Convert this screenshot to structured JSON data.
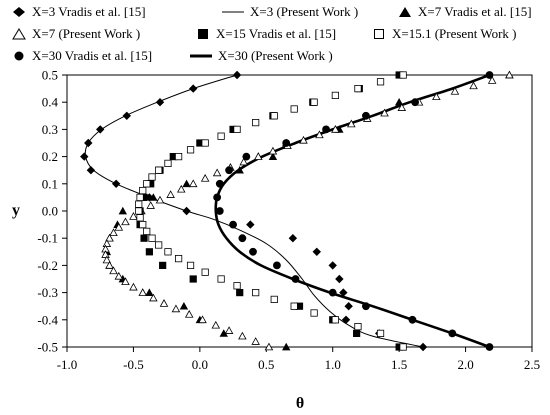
{
  "chart_data": {
    "type": "scatter",
    "title": "",
    "xlabel": "θ",
    "ylabel": "y",
    "xlim": [
      -1.0,
      2.5
    ],
    "ylim": [
      -0.5,
      0.5
    ],
    "xticks": [
      "-1.0",
      "-0.5",
      "0.0",
      "0.5",
      "1.0",
      "1.5",
      "2.0",
      "2.5"
    ],
    "yticks": [
      "-0.5",
      "-0.4",
      "-0.3",
      "-0.2",
      "-0.1",
      "0.0",
      "0.1",
      "0.2",
      "0.3",
      "0.4",
      "0.5"
    ],
    "grid": false,
    "legend_position": "top",
    "series": [
      {
        "name": "X=3 Vradis et al. [15]",
        "kind": "markers",
        "marker": "diamond",
        "points": [
          [
            0.28,
            0.5
          ],
          [
            -0.05,
            0.45
          ],
          [
            -0.3,
            0.4
          ],
          [
            -0.55,
            0.35
          ],
          [
            -0.75,
            0.3
          ],
          [
            -0.84,
            0.25
          ],
          [
            -0.87,
            0.2
          ],
          [
            -0.82,
            0.15
          ],
          [
            -0.63,
            0.1
          ],
          [
            -0.38,
            0.05
          ],
          [
            -0.1,
            0.0
          ],
          [
            0.38,
            -0.05
          ],
          [
            0.7,
            -0.1
          ],
          [
            0.88,
            -0.15
          ],
          [
            1.0,
            -0.2
          ],
          [
            1.05,
            -0.25
          ],
          [
            1.08,
            -0.3
          ],
          [
            1.12,
            -0.35
          ],
          [
            1.1,
            -0.4
          ],
          [
            1.35,
            -0.45
          ],
          [
            1.68,
            -0.5
          ]
        ]
      },
      {
        "name": "X=3 (Present Work )",
        "kind": "line",
        "style": "thin",
        "points": [
          [
            0.28,
            0.5
          ],
          [
            -0.05,
            0.45
          ],
          [
            -0.32,
            0.4
          ],
          [
            -0.56,
            0.35
          ],
          [
            -0.74,
            0.3
          ],
          [
            -0.84,
            0.25
          ],
          [
            -0.86,
            0.2
          ],
          [
            -0.8,
            0.15
          ],
          [
            -0.63,
            0.1
          ],
          [
            -0.38,
            0.05
          ],
          [
            -0.1,
            0.0
          ],
          [
            0.1,
            -0.03
          ],
          [
            0.3,
            -0.07
          ],
          [
            0.5,
            -0.12
          ],
          [
            0.65,
            -0.18
          ],
          [
            0.77,
            -0.25
          ],
          [
            0.86,
            -0.31
          ],
          [
            0.98,
            -0.37
          ],
          [
            1.12,
            -0.42
          ],
          [
            1.3,
            -0.46
          ],
          [
            1.68,
            -0.5
          ]
        ]
      },
      {
        "name": "X=7 Vradis et al. [15]",
        "kind": "markers",
        "marker": "triangle",
        "points": [
          [
            2.33,
            0.5
          ],
          [
            1.5,
            0.4
          ],
          [
            1.05,
            0.3
          ],
          [
            0.65,
            0.25
          ],
          [
            0.55,
            0.2
          ],
          [
            0.3,
            0.15
          ],
          [
            -0.1,
            0.1
          ],
          [
            -0.35,
            0.05
          ],
          [
            -0.58,
            0.0
          ],
          [
            -0.62,
            -0.05
          ],
          [
            -0.68,
            -0.1
          ],
          [
            -0.7,
            -0.15
          ],
          [
            -0.68,
            -0.2
          ],
          [
            -0.58,
            -0.25
          ],
          [
            -0.38,
            -0.3
          ],
          [
            -0.12,
            -0.35
          ],
          [
            0.0,
            -0.4
          ],
          [
            0.18,
            -0.45
          ],
          [
            0.65,
            -0.5
          ]
        ]
      },
      {
        "name": "X=7 (Present Work )",
        "kind": "markers",
        "marker": "tri-open",
        "points": [
          [
            2.33,
            0.5
          ],
          [
            2.2,
            0.48
          ],
          [
            2.06,
            0.46
          ],
          [
            1.92,
            0.44
          ],
          [
            1.78,
            0.42
          ],
          [
            1.65,
            0.4
          ],
          [
            1.52,
            0.38
          ],
          [
            1.39,
            0.36
          ],
          [
            1.26,
            0.34
          ],
          [
            1.14,
            0.32
          ],
          [
            1.02,
            0.3
          ],
          [
            0.9,
            0.28
          ],
          [
            0.78,
            0.26
          ],
          [
            0.66,
            0.24
          ],
          [
            0.55,
            0.22
          ],
          [
            0.44,
            0.2
          ],
          [
            0.33,
            0.18
          ],
          [
            0.23,
            0.16
          ],
          [
            0.13,
            0.14
          ],
          [
            0.04,
            0.12
          ],
          [
            -0.05,
            0.1
          ],
          [
            -0.14,
            0.08
          ],
          [
            -0.22,
            0.06
          ],
          [
            -0.3,
            0.04
          ],
          [
            -0.37,
            0.02
          ],
          [
            -0.44,
            0.0
          ],
          [
            -0.5,
            -0.02
          ],
          [
            -0.56,
            -0.04
          ],
          [
            -0.61,
            -0.06
          ],
          [
            -0.65,
            -0.08
          ],
          [
            -0.68,
            -0.1
          ],
          [
            -0.7,
            -0.12
          ],
          [
            -0.71,
            -0.14
          ],
          [
            -0.71,
            -0.16
          ],
          [
            -0.7,
            -0.18
          ],
          [
            -0.68,
            -0.2
          ],
          [
            -0.65,
            -0.22
          ],
          [
            -0.61,
            -0.24
          ],
          [
            -0.56,
            -0.26
          ],
          [
            -0.5,
            -0.28
          ],
          [
            -0.43,
            -0.3
          ],
          [
            -0.35,
            -0.32
          ],
          [
            -0.27,
            -0.34
          ],
          [
            -0.18,
            -0.36
          ],
          [
            -0.08,
            -0.38
          ],
          [
            0.02,
            -0.4
          ],
          [
            0.12,
            -0.42
          ],
          [
            0.22,
            -0.44
          ],
          [
            0.32,
            -0.46
          ],
          [
            0.42,
            -0.48
          ],
          [
            0.52,
            -0.5
          ]
        ]
      },
      {
        "name": "X=15 Vradis et al. [15]",
        "kind": "markers",
        "marker": "square",
        "points": [
          [
            1.5,
            0.5
          ],
          [
            1.2,
            0.45
          ],
          [
            0.85,
            0.4
          ],
          [
            0.55,
            0.35
          ],
          [
            0.25,
            0.3
          ],
          [
            0.0,
            0.25
          ],
          [
            -0.2,
            0.2
          ],
          [
            -0.3,
            0.15
          ],
          [
            -0.37,
            0.1
          ],
          [
            -0.42,
            0.05
          ],
          [
            -0.45,
            0.0
          ],
          [
            -0.45,
            -0.05
          ],
          [
            -0.42,
            -0.1
          ],
          [
            -0.38,
            -0.15
          ],
          [
            -0.28,
            -0.2
          ],
          [
            -0.05,
            -0.25
          ],
          [
            0.3,
            -0.3
          ],
          [
            0.75,
            -0.35
          ],
          [
            1.0,
            -0.4
          ],
          [
            1.18,
            -0.45
          ],
          [
            1.5,
            -0.5
          ]
        ]
      },
      {
        "name": "X=15.1 (Present Work )",
        "kind": "markers",
        "marker": "square-open",
        "points": [
          [
            1.53,
            0.5
          ],
          [
            1.36,
            0.475
          ],
          [
            1.19,
            0.45
          ],
          [
            1.02,
            0.425
          ],
          [
            0.86,
            0.4
          ],
          [
            0.71,
            0.375
          ],
          [
            0.56,
            0.35
          ],
          [
            0.42,
            0.325
          ],
          [
            0.28,
            0.3
          ],
          [
            0.16,
            0.275
          ],
          [
            0.04,
            0.25
          ],
          [
            -0.07,
            0.225
          ],
          [
            -0.16,
            0.2
          ],
          [
            -0.24,
            0.175
          ],
          [
            -0.31,
            0.15
          ],
          [
            -0.36,
            0.125
          ],
          [
            -0.4,
            0.1
          ],
          [
            -0.43,
            0.075
          ],
          [
            -0.45,
            0.05
          ],
          [
            -0.46,
            0.025
          ],
          [
            -0.46,
            0.0
          ],
          [
            -0.45,
            -0.025
          ],
          [
            -0.43,
            -0.05
          ],
          [
            -0.4,
            -0.075
          ],
          [
            -0.36,
            -0.1
          ],
          [
            -0.31,
            -0.125
          ],
          [
            -0.24,
            -0.15
          ],
          [
            -0.16,
            -0.175
          ],
          [
            -0.07,
            -0.2
          ],
          [
            0.04,
            -0.225
          ],
          [
            0.16,
            -0.25
          ],
          [
            0.28,
            -0.275
          ],
          [
            0.42,
            -0.3
          ],
          [
            0.56,
            -0.325
          ],
          [
            0.71,
            -0.35
          ],
          [
            0.86,
            -0.375
          ],
          [
            1.02,
            -0.4
          ],
          [
            1.19,
            -0.425
          ],
          [
            1.36,
            -0.45
          ],
          [
            1.53,
            -0.5
          ]
        ]
      },
      {
        "name": "X=30 Vradis et al. [15]",
        "kind": "markers",
        "marker": "circle",
        "points": [
          [
            2.18,
            0.5
          ],
          [
            1.62,
            0.4
          ],
          [
            1.25,
            0.35
          ],
          [
            0.95,
            0.3
          ],
          [
            0.65,
            0.25
          ],
          [
            0.35,
            0.2
          ],
          [
            0.22,
            0.15
          ],
          [
            0.15,
            0.1
          ],
          [
            0.13,
            0.05
          ],
          [
            0.15,
            0.0
          ],
          [
            0.25,
            -0.05
          ],
          [
            0.32,
            -0.1
          ],
          [
            0.4,
            -0.15
          ],
          [
            0.58,
            -0.2
          ],
          [
            0.72,
            -0.25
          ],
          [
            1.0,
            -0.3
          ],
          [
            1.25,
            -0.35
          ],
          [
            1.6,
            -0.4
          ],
          [
            1.9,
            -0.45
          ],
          [
            2.18,
            -0.5
          ]
        ]
      },
      {
        "name": "X=30 (Present Work )",
        "kind": "line",
        "style": "thick",
        "points": [
          [
            2.18,
            0.5
          ],
          [
            1.9,
            0.45
          ],
          [
            1.58,
            0.4
          ],
          [
            1.3,
            0.35
          ],
          [
            1.0,
            0.3
          ],
          [
            0.72,
            0.25
          ],
          [
            0.47,
            0.2
          ],
          [
            0.29,
            0.15
          ],
          [
            0.18,
            0.1
          ],
          [
            0.13,
            0.05
          ],
          [
            0.12,
            0.0
          ],
          [
            0.14,
            -0.05
          ],
          [
            0.2,
            -0.1
          ],
          [
            0.3,
            -0.15
          ],
          [
            0.46,
            -0.2
          ],
          [
            0.7,
            -0.25
          ],
          [
            0.98,
            -0.3
          ],
          [
            1.3,
            -0.35
          ],
          [
            1.6,
            -0.4
          ],
          [
            1.9,
            -0.45
          ],
          [
            2.18,
            -0.5
          ]
        ]
      }
    ]
  }
}
